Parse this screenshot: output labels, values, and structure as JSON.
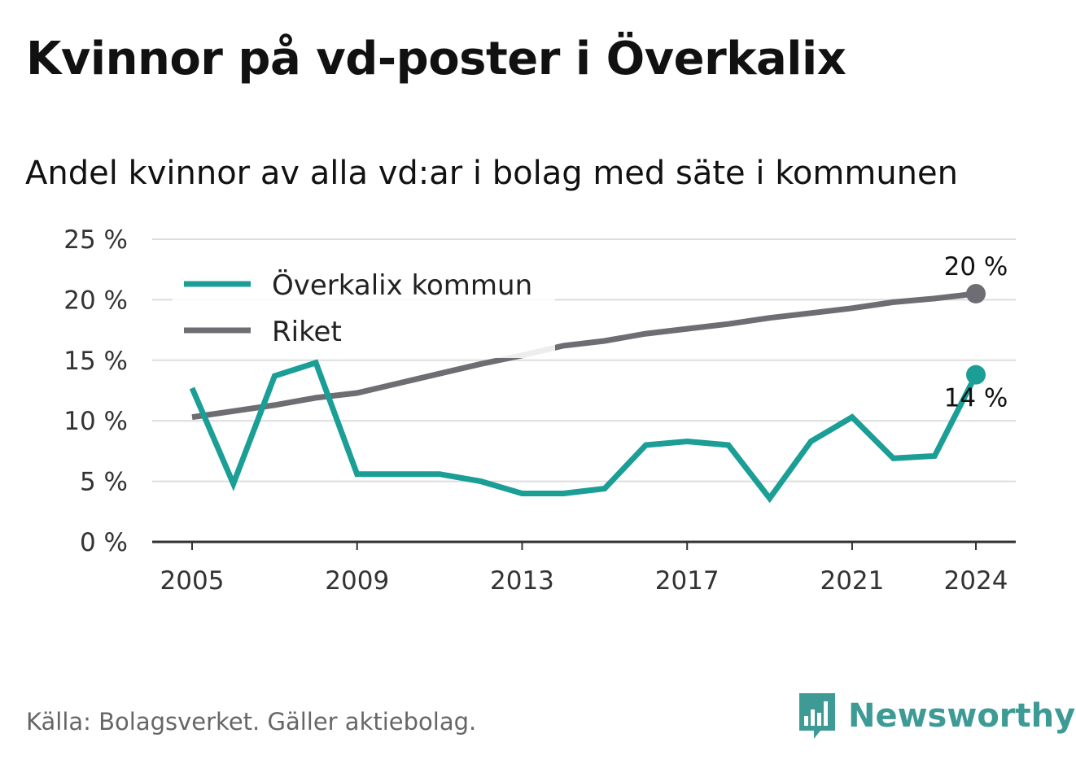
{
  "title": "Kvinnor på vd-poster i Överkalix",
  "subtitle": "Andel kvinnor av alla vd:ar i bolag med säte i kommunen",
  "source": "Källa: Bolagsverket. Gäller aktiebolag.",
  "brand": "Newsworthy",
  "colors": {
    "overkalix": "#1a9e96",
    "riket": "#6e6d73",
    "grid": "#dddddd",
    "brand": "#3d9a94"
  },
  "chart_data": {
    "type": "line",
    "title": "Kvinnor på vd-poster i Överkalix",
    "subtitle": "Andel kvinnor av alla vd:ar i bolag med säte i kommunen",
    "ylim": [
      0,
      25
    ],
    "y_ticks": [
      0,
      5,
      10,
      15,
      20,
      25
    ],
    "y_tick_labels": [
      "0 %",
      "5 %",
      "10 %",
      "15 %",
      "20 %",
      "25 %"
    ],
    "xlim": [
      2005,
      2024
    ],
    "x_ticks": [
      2005,
      2009,
      2013,
      2017,
      2021,
      2024
    ],
    "x_tick_labels": [
      "2005",
      "2009",
      "2013",
      "2017",
      "2021",
      "2024"
    ],
    "grid": true,
    "legend": "top-left",
    "x": [
      2005,
      2006,
      2007,
      2008,
      2009,
      2010,
      2011,
      2012,
      2013,
      2014,
      2015,
      2016,
      2017,
      2018,
      2019,
      2020,
      2021,
      2022,
      2023,
      2024
    ],
    "series": [
      {
        "name": "Överkalix kommun",
        "color": "#1a9e96",
        "values": [
          12.7,
          4.8,
          13.7,
          14.8,
          5.6,
          5.6,
          5.6,
          5.0,
          4.0,
          4.0,
          4.4,
          8.0,
          8.3,
          8.0,
          3.6,
          8.3,
          10.3,
          6.9,
          7.1,
          13.8
        ],
        "end_label": "14 %"
      },
      {
        "name": "Riket",
        "color": "#6e6d73",
        "values": [
          10.3,
          10.8,
          11.3,
          11.9,
          12.3,
          13.1,
          13.9,
          14.7,
          15.4,
          16.2,
          16.6,
          17.2,
          17.6,
          18.0,
          18.5,
          18.9,
          19.3,
          19.8,
          20.1,
          20.5
        ],
        "end_label": "20 %"
      }
    ]
  }
}
